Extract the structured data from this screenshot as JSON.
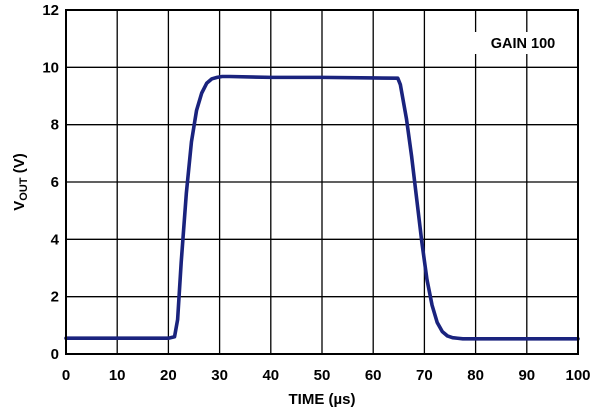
{
  "chart_data": {
    "type": "line",
    "title": "",
    "xlabel": "TIME (µs)",
    "ylabel": {
      "main": "V",
      "sub": "OUT",
      "unit": " (V)"
    },
    "xlim": [
      0,
      100
    ],
    "ylim": [
      0,
      12
    ],
    "xticks": [
      0,
      10,
      20,
      30,
      40,
      50,
      60,
      70,
      80,
      90,
      100
    ],
    "yticks": [
      0,
      2,
      4,
      6,
      8,
      10,
      12
    ],
    "xtick_labels": [
      "0",
      "10",
      "20",
      "30",
      "40",
      "50",
      "60",
      "70",
      "80",
      "90",
      "100"
    ],
    "ytick_labels": [
      "0",
      "2",
      "4",
      "6",
      "8",
      "10",
      "12"
    ],
    "grid": true,
    "annotation": "GAIN 100",
    "series_color": "#1a237e",
    "series": [
      {
        "x": [
          0,
          10,
          20,
          21.2,
          21.8,
          22.5,
          23.5,
          24.5,
          25.5,
          26.5,
          27.5,
          28.5,
          29.5,
          30.5,
          32,
          40,
          50,
          60,
          64.8,
          65.3,
          66.5,
          67.5,
          68.5,
          69.5,
          70.5,
          71.5,
          72.5,
          73.5,
          74.5,
          75.5,
          76.5,
          77.5,
          80,
          90,
          100
        ],
        "y": [
          0.55,
          0.55,
          0.55,
          0.6,
          1.2,
          3.2,
          5.6,
          7.4,
          8.5,
          9.1,
          9.45,
          9.6,
          9.65,
          9.68,
          9.68,
          9.65,
          9.65,
          9.63,
          9.62,
          9.4,
          8.2,
          6.9,
          5.4,
          3.9,
          2.6,
          1.7,
          1.1,
          0.78,
          0.63,
          0.57,
          0.55,
          0.53,
          0.53,
          0.53,
          0.53
        ]
      }
    ]
  }
}
